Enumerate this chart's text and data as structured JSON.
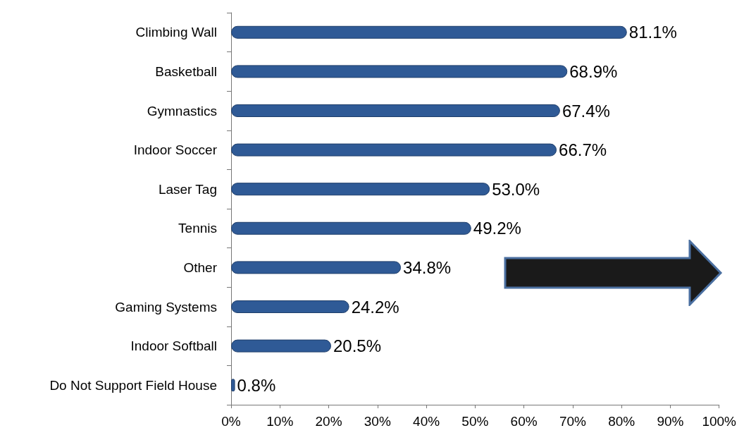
{
  "chart_data": {
    "type": "bar",
    "orientation": "horizontal",
    "categories": [
      "Climbing Wall",
      "Basketball",
      "Gymnastics",
      "Indoor Soccer",
      "Laser Tag",
      "Tennis",
      "Other",
      "Gaming Systems",
      "Indoor Softball",
      "Do Not Support Field House"
    ],
    "values": [
      81.1,
      68.9,
      67.4,
      66.7,
      53.0,
      49.2,
      34.8,
      24.2,
      20.5,
      0.8
    ],
    "value_labels": [
      "81.1%",
      "68.9%",
      "67.4%",
      "66.7%",
      "53.0%",
      "49.2%",
      "34.8%",
      "24.2%",
      "20.5%",
      "0.8%"
    ],
    "color": "#2f5a96",
    "xlim": [
      0,
      100
    ],
    "xticks": [
      {
        "value": 0,
        "label": "0%"
      },
      {
        "value": 10,
        "label": "10%"
      },
      {
        "value": 20,
        "label": "20%"
      },
      {
        "value": 30,
        "label": "30%"
      },
      {
        "value": 40,
        "label": "40%"
      },
      {
        "value": 50,
        "label": "50%"
      },
      {
        "value": 60,
        "label": "60%"
      },
      {
        "value": 70,
        "label": "70%"
      },
      {
        "value": 80,
        "label": "80%"
      },
      {
        "value": 90,
        "label": "90%"
      },
      {
        "value": 100,
        "label": "100%"
      }
    ],
    "grid": false
  }
}
